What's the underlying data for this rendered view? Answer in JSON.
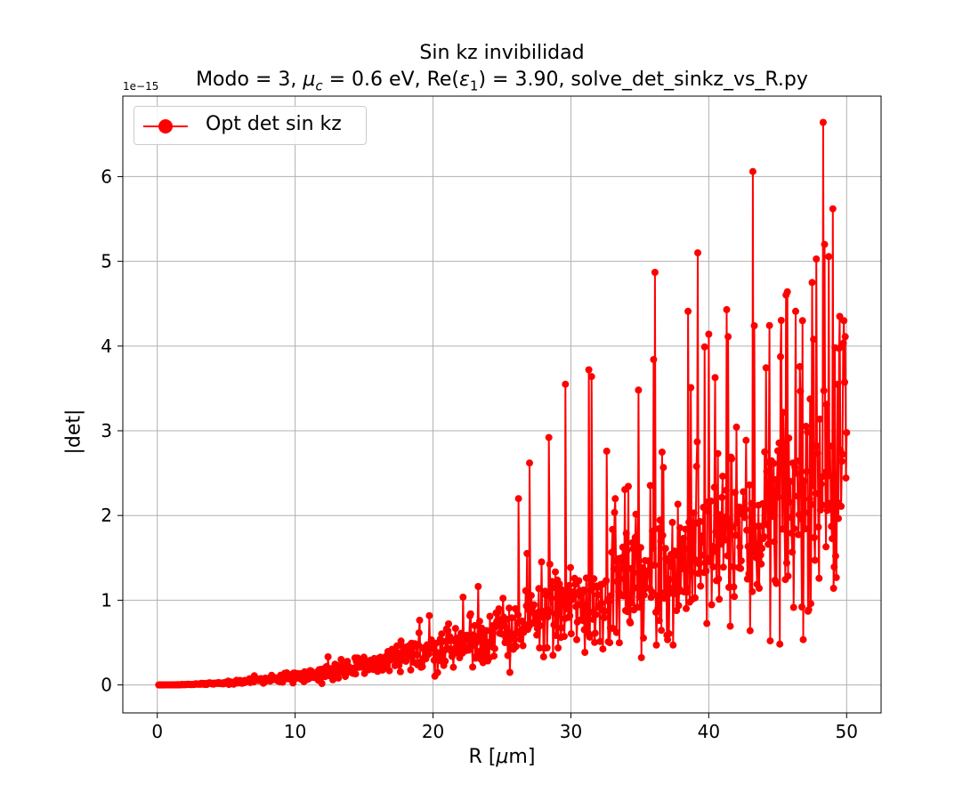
{
  "chart_data": {
    "type": "line",
    "title": "Sin kz invibilidad",
    "subtitle": {
      "part1": "Modo = 3, ",
      "mu_symbol": "μ",
      "mu_sub": "c",
      "part2": " = 0.6 eV, Re(",
      "eps_symbol": "ε",
      "eps_sub": "1",
      "part3": ") = 3.90, solve_det_sinkz_vs_R.py"
    },
    "xlabel": {
      "prefix": "R [",
      "mu": "μ",
      "suffix": "m]"
    },
    "ylabel": "|det|",
    "y_offset_text": "1e−15",
    "y_scale": 1e-15,
    "xlim": [
      -2.5,
      52.5
    ],
    "ylim": [
      -0.33,
      6.95
    ],
    "xticks": [
      0,
      10,
      20,
      30,
      40,
      50
    ],
    "yticks": [
      0,
      1,
      2,
      3,
      4,
      5,
      6
    ],
    "grid": true,
    "legend_position": "top-left",
    "series": [
      {
        "name": "Opt det sin kz",
        "color": "#ff0000",
        "marker": "circle",
        "x_range": [
          0.1,
          50
        ],
        "n_points": 1000,
        "trend_coefficient": 0.001,
        "trend_exponent": 2,
        "highlighted_peaks": [
          {
            "x": 48.3,
            "y": 6.64
          },
          {
            "x": 43.2,
            "y": 6.06
          },
          {
            "x": 49.0,
            "y": 5.62
          },
          {
            "x": 48.4,
            "y": 5.2
          },
          {
            "x": 39.2,
            "y": 5.1
          },
          {
            "x": 36.1,
            "y": 4.87
          },
          {
            "x": 47.5,
            "y": 4.75
          },
          {
            "x": 45.7,
            "y": 4.64
          },
          {
            "x": 41.3,
            "y": 4.43
          },
          {
            "x": 38.5,
            "y": 4.41
          },
          {
            "x": 46.3,
            "y": 4.41
          },
          {
            "x": 49.5,
            "y": 4.35
          },
          {
            "x": 49.8,
            "y": 4.3
          },
          {
            "x": 46.8,
            "y": 4.3
          },
          {
            "x": 43.3,
            "y": 4.24
          },
          {
            "x": 40.0,
            "y": 4.14
          },
          {
            "x": 41.4,
            "y": 4.11
          },
          {
            "x": 49.9,
            "y": 4.11
          },
          {
            "x": 47.6,
            "y": 4.08
          },
          {
            "x": 39.7,
            "y": 3.99
          },
          {
            "x": 36.0,
            "y": 3.84
          },
          {
            "x": 31.3,
            "y": 3.72
          },
          {
            "x": 31.5,
            "y": 3.64
          },
          {
            "x": 29.6,
            "y": 3.55
          },
          {
            "x": 34.9,
            "y": 3.48
          },
          {
            "x": 38.7,
            "y": 3.51
          },
          {
            "x": 32.6,
            "y": 2.76
          },
          {
            "x": 27.0,
            "y": 2.62
          },
          {
            "x": 28.4,
            "y": 2.92
          },
          {
            "x": 26.2,
            "y": 2.2
          },
          {
            "x": 43.0,
            "y": 0.64
          },
          {
            "x": 47.4,
            "y": 0.96
          },
          {
            "x": 36.2,
            "y": 0.47
          },
          {
            "x": 28.7,
            "y": 0.35
          }
        ]
      }
    ]
  }
}
